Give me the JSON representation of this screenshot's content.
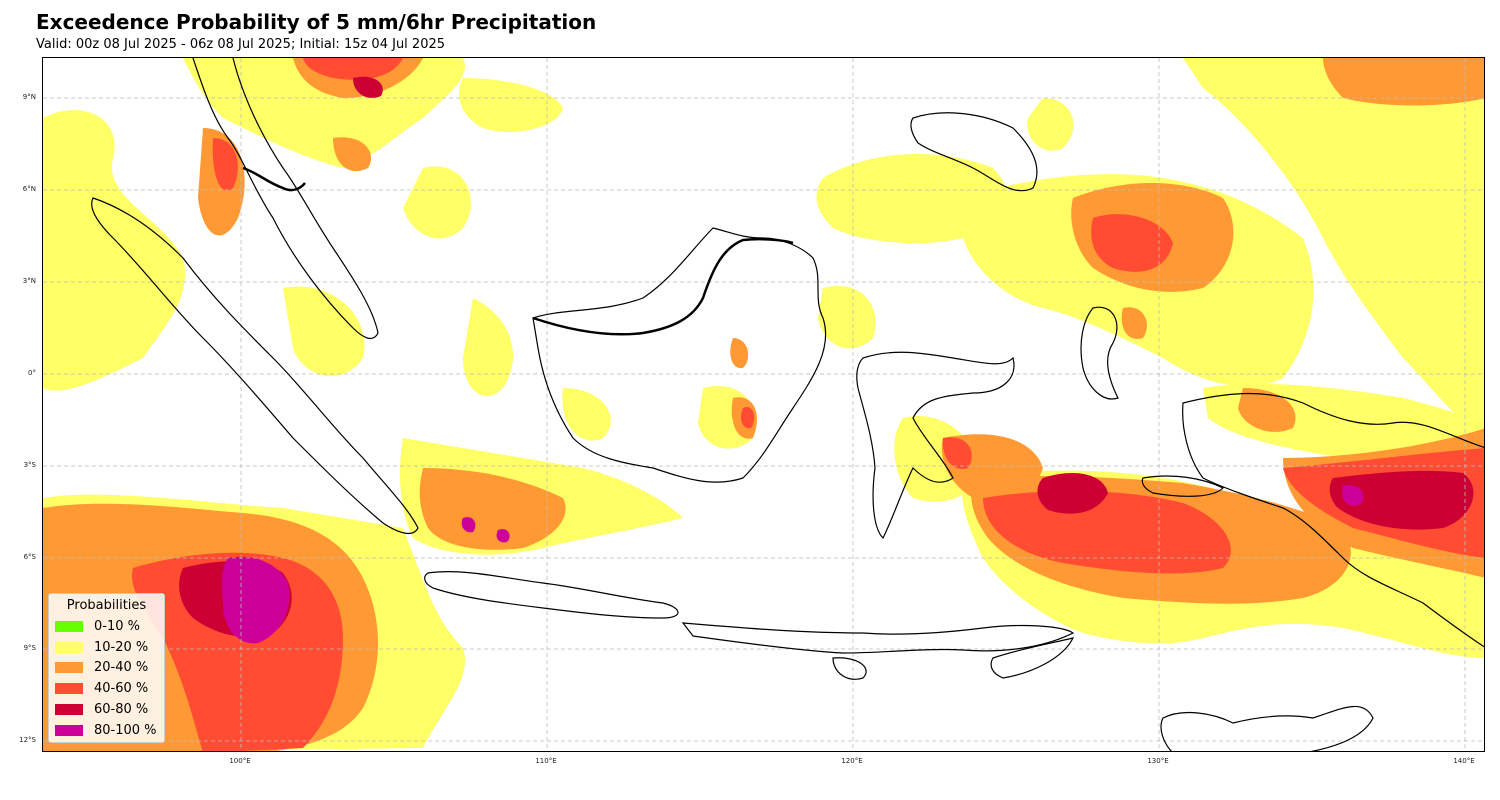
{
  "title": "Exceedence Probability of 5 mm/6hr Precipitation",
  "subtitle": "Valid: 00z 08 Jul 2025 - 06z 08 Jul 2025; Initial: 15z 04 Jul 2025",
  "axes": {
    "lat_labels": [
      "9°N",
      "6°N",
      "3°N",
      "0°",
      "3°S",
      "6°S",
      "9°S",
      "12°S"
    ],
    "lon_labels": [
      "100°E",
      "110°E",
      "120°E",
      "130°E",
      "140°E"
    ]
  },
  "legend": {
    "title": "Probabilities",
    "items": [
      {
        "label": "0-10 %",
        "color": "#66ff00"
      },
      {
        "label": "10-20 %",
        "color": "#ffff66"
      },
      {
        "label": "20-40 %",
        "color": "#ff9933"
      },
      {
        "label": "40-60 %",
        "color": "#ff4c33"
      },
      {
        "label": "60-80 %",
        "color": "#cc0033"
      },
      {
        "label": "80-100 %",
        "color": "#cc0099"
      }
    ]
  },
  "map": {
    "lon_range": [
      93.5,
      140.7
    ],
    "lat_range": [
      -12.3,
      10.4
    ],
    "gridlines": true
  }
}
